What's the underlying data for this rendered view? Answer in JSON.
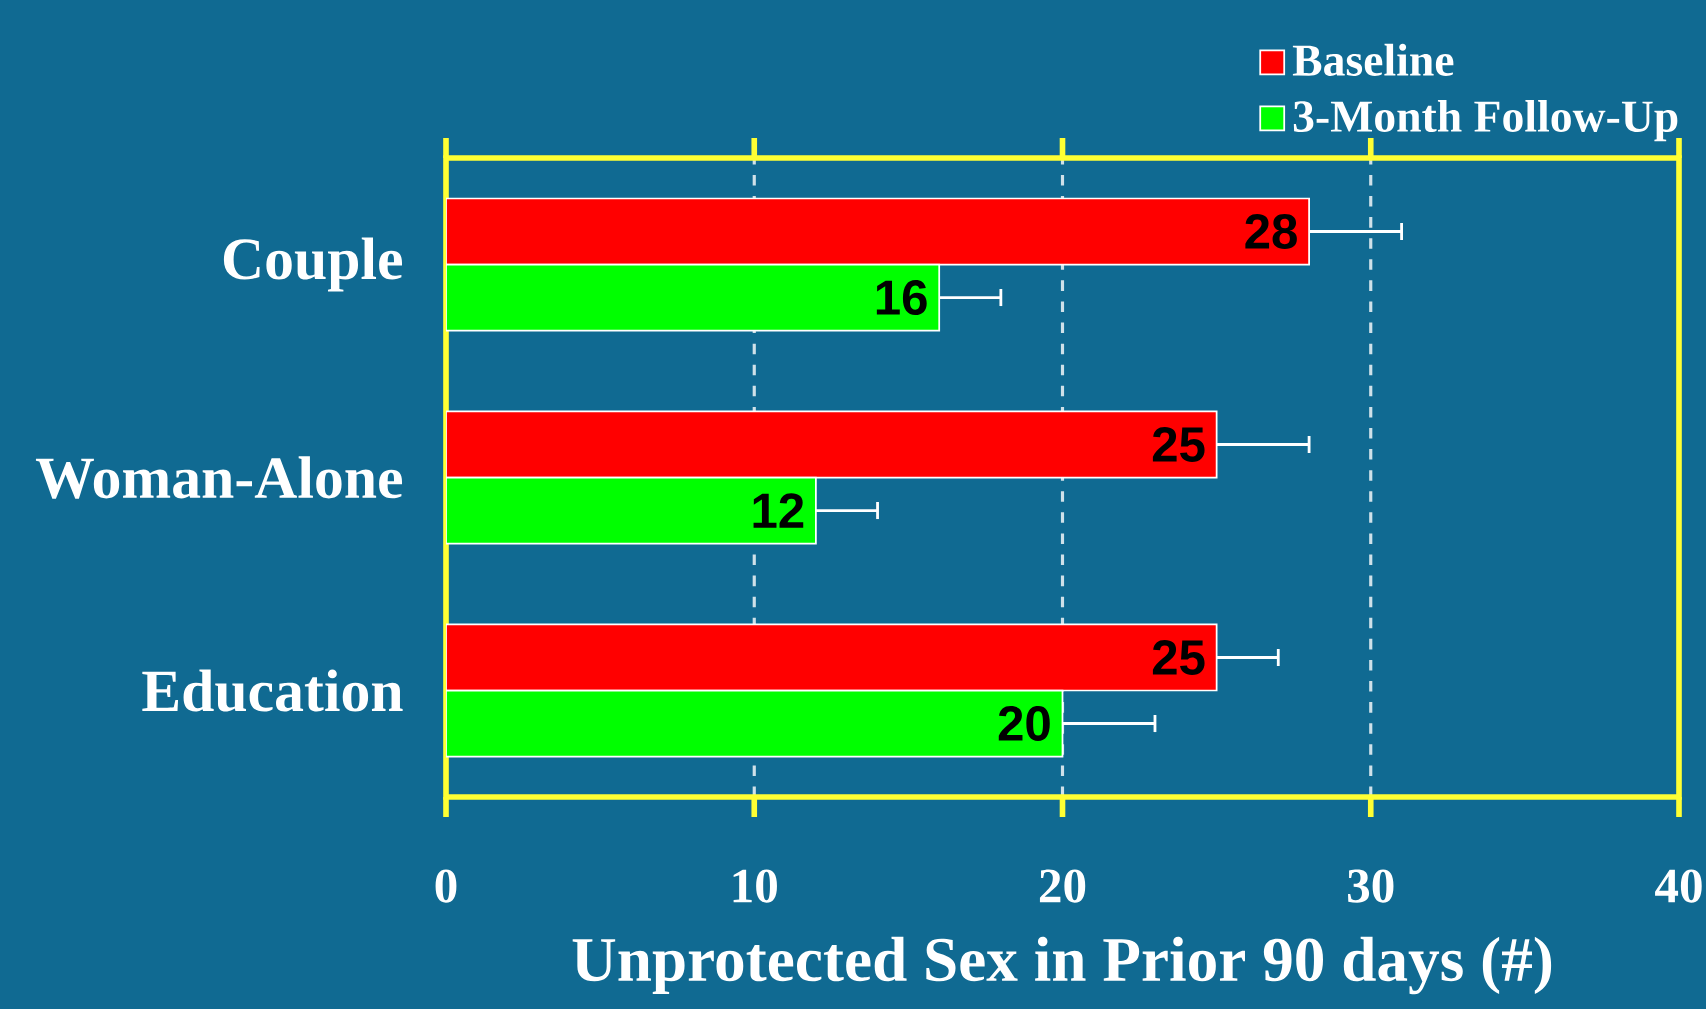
{
  "chart_data": {
    "type": "bar",
    "orientation": "horizontal",
    "xlabel": "Unprotected Sex in Prior 90 days (#)",
    "categories": [
      "Couple",
      "Woman-Alone",
      "Education"
    ],
    "series": [
      {
        "name": "Baseline",
        "color": "#ff0000",
        "values": [
          28,
          25,
          25
        ],
        "errors": [
          [
            28,
            31
          ],
          [
            25,
            28
          ],
          [
            25,
            27
          ]
        ]
      },
      {
        "name": "3-Month Follow-Up",
        "color": "#00ff00",
        "values": [
          16,
          12,
          20
        ],
        "errors": [
          [
            16,
            18
          ],
          [
            12,
            14
          ],
          [
            20,
            23
          ]
        ]
      }
    ],
    "xlim": [
      0,
      40
    ],
    "xticks": [
      0,
      10,
      20,
      30,
      40
    ],
    "grid": "x",
    "legend": "top right",
    "data_labels": true
  }
}
